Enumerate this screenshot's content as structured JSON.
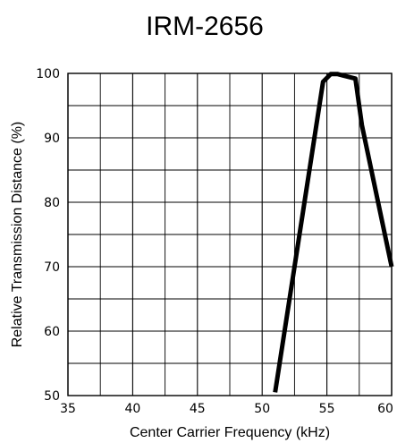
{
  "chart_data": {
    "type": "line",
    "title": "IRM-2656",
    "xlabel": "Center Carrier Frequency  (kHz)",
    "ylabel": "Relative Transmission Distance (%)",
    "xlim": [
      35,
      60
    ],
    "ylim": [
      50,
      100
    ],
    "x_ticks": [
      35,
      40,
      45,
      50,
      55,
      60
    ],
    "y_ticks": [
      50,
      60,
      70,
      80,
      90,
      100
    ],
    "x_tick_labels": [
      "35",
      "40",
      "45",
      "50",
      "55",
      "60"
    ],
    "y_tick_labels": [
      "50",
      "60",
      "70",
      "80",
      "90",
      "100"
    ],
    "x_minor_step": 2.5,
    "y_minor_step": 5,
    "grid": true,
    "line_color": "#000000",
    "series": [
      {
        "x": [
          51.0,
          54.7,
          55.3,
          55.8,
          56.2,
          57.2,
          57.7,
          60.0
        ],
        "y": [
          50.5,
          98.7,
          99.9,
          99.9,
          99.7,
          99.2,
          92.0,
          70.0
        ]
      }
    ]
  }
}
